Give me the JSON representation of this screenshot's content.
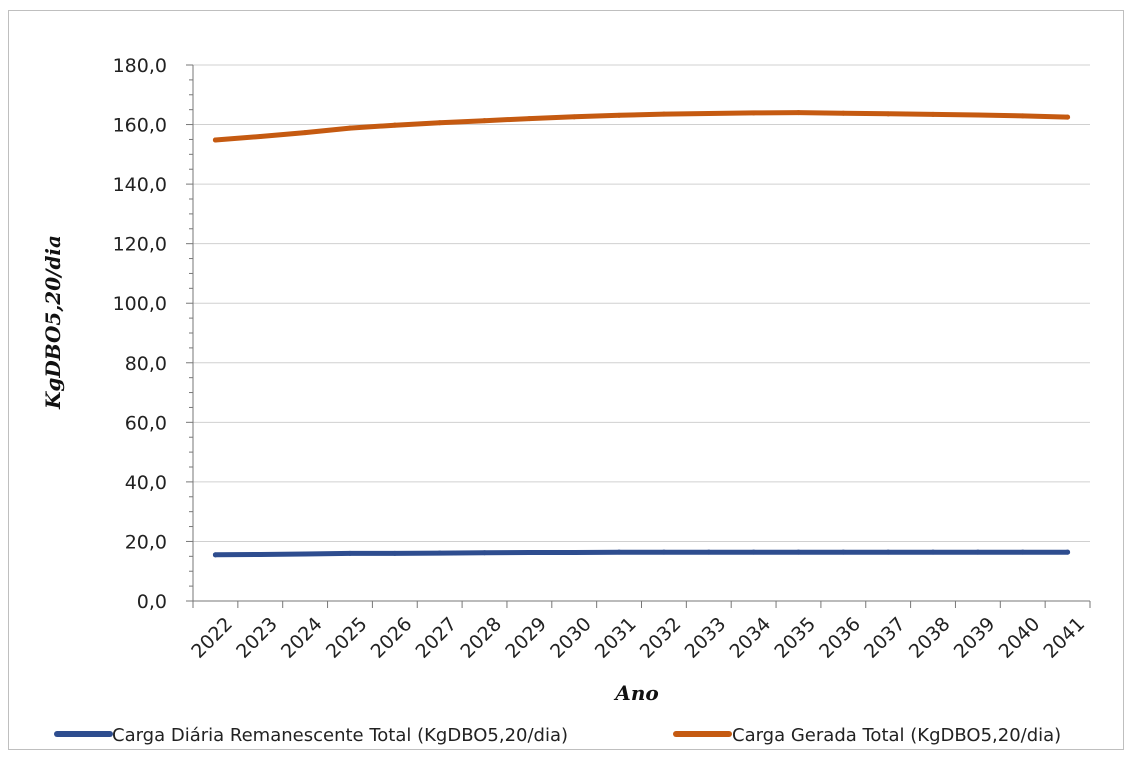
{
  "chart_data": {
    "type": "line",
    "title": "",
    "xlabel": "Ano",
    "ylabel": "KgDBO5,20/dia",
    "ylim": [
      0,
      180
    ],
    "yticks": [
      "0,0",
      "20,0",
      "40,0",
      "60,0",
      "80,0",
      "100,0",
      "120,0",
      "140,0",
      "160,0",
      "180,0"
    ],
    "categories": [
      "2022",
      "2023",
      "2024",
      "2025",
      "2026",
      "2027",
      "2028",
      "2029",
      "2030",
      "2031",
      "2032",
      "2033",
      "2034",
      "2035",
      "2036",
      "2037",
      "2038",
      "2039",
      "2040",
      "2041"
    ],
    "grid": true,
    "legend_position": "bottom",
    "series": [
      {
        "name": "Carga Diária Remanescente Total (KgDBO5,20/dia)",
        "color": "#2e4d8f",
        "values": [
          15.5,
          15.6,
          15.8,
          16.0,
          16.0,
          16.1,
          16.2,
          16.3,
          16.3,
          16.4,
          16.4,
          16.4,
          16.4,
          16.4,
          16.4,
          16.4,
          16.4,
          16.4,
          16.4,
          16.4
        ]
      },
      {
        "name": "Carga Gerada Total (KgDBO5,20/dia)",
        "color": "#c55a11",
        "values": [
          154.8,
          156.0,
          157.3,
          158.8,
          159.8,
          160.6,
          161.3,
          162.0,
          162.6,
          163.1,
          163.5,
          163.7,
          163.9,
          164.0,
          163.8,
          163.6,
          163.4,
          163.2,
          162.9,
          162.5
        ]
      }
    ]
  }
}
